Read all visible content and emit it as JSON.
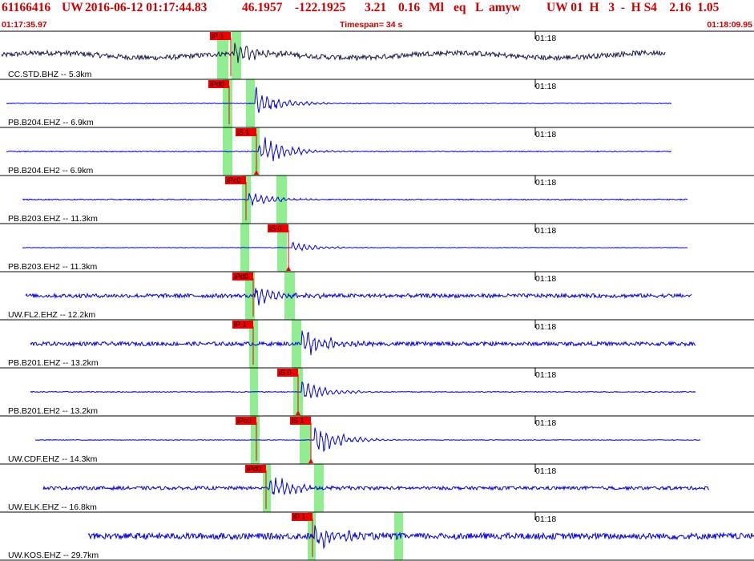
{
  "header": {
    "event_id": "61166416",
    "network": "UW",
    "datetime": "2016-06-12 01:17:44.83",
    "lat": "46.1957",
    "lon": "-122.1925",
    "depth": "3.21",
    "mag": "0.16",
    "mag_type": "Ml",
    "etype": "eq",
    "gtype": "L",
    "analyst": "amyw",
    "status_tail": "UW 01  H   3  -  H S4    2.16  1.05",
    "start_time": "01:17:35.97",
    "timespan": "Timespan=  34 s",
    "end_time": "01:18:09.95"
  },
  "colors": {
    "first_trace": "#1a1a4d",
    "trace": "#0000dd",
    "pick_bg": "#ee0000",
    "pick_window": "#90ee90",
    "divider": "#000000"
  },
  "chart_data": {
    "type": "line",
    "title": "",
    "x_range": [
      "01:17:35.97",
      "01:18:09.95"
    ],
    "x_tick_label": "01:18",
    "channels": [
      {
        "label": "CC.STD.BHZ -- 5.3km",
        "picks": [
          {
            "label": "iP 1",
            "arrow": false
          }
        ],
        "amp": 0.45,
        "noise": 0.45,
        "long": 0.6
      },
      {
        "label": "PB.B204.EHZ -- 6.9km",
        "picks": [
          {
            "label": "iPd0",
            "arrow": false
          }
        ],
        "amp": 0.7,
        "noise": 0.06,
        "long": 0
      },
      {
        "label": "PB.B204.EH2 -- 6.9km",
        "picks": [
          {
            "label": "iS 1",
            "arrow": true
          }
        ],
        "amp": 0.8,
        "noise": 0.08,
        "long": 0
      },
      {
        "label": "PB.B203.EHZ -- 11.3km",
        "picks": [
          {
            "label": "iPc0",
            "arrow": false
          }
        ],
        "amp": 0.35,
        "noise": 0.1,
        "long": 0
      },
      {
        "label": "PB.B203.EH2 -- 11.3km",
        "picks": [
          {
            "label": "iS 0",
            "arrow": true
          }
        ],
        "amp": 0.22,
        "noise": 0.04,
        "long": 0
      },
      {
        "label": "UW.FL2.EHZ -- 12.2km",
        "picks": [
          {
            "label": "iPd0",
            "arrow": false
          }
        ],
        "amp": 0.5,
        "noise": 0.35,
        "long": 0
      },
      {
        "label": "PB.B201.EHZ -- 13.2km",
        "picks": [
          {
            "label": "iP 1",
            "arrow": false
          }
        ],
        "amp": 0.8,
        "noise": 0.35,
        "long": 0
      },
      {
        "label": "PB.B201.EH2 -- 13.2km",
        "picks": [
          {
            "label": "iS 0",
            "arrow": true
          }
        ],
        "amp": 0.5,
        "noise": 0.08,
        "long": 0
      },
      {
        "label": "UW.CDF.EHZ -- 14.3km",
        "picks": [
          {
            "label": "iPc0",
            "arrow": false
          },
          {
            "label": "iS 1",
            "arrow": true
          }
        ],
        "amp": 0.8,
        "noise": 0.06,
        "long": 0
      },
      {
        "label": "UW.ELK.EHZ -- 16.8km",
        "picks": [
          {
            "label": "iPd0",
            "arrow": false
          }
        ],
        "amp": 0.6,
        "noise": 0.3,
        "long": 0
      },
      {
        "label": "UW.KOS.EHZ -- 29.7km",
        "picks": [
          {
            "label": "iP 1",
            "arrow": false
          }
        ],
        "amp": 0.55,
        "noise": 0.55,
        "long": 0
      }
    ]
  }
}
